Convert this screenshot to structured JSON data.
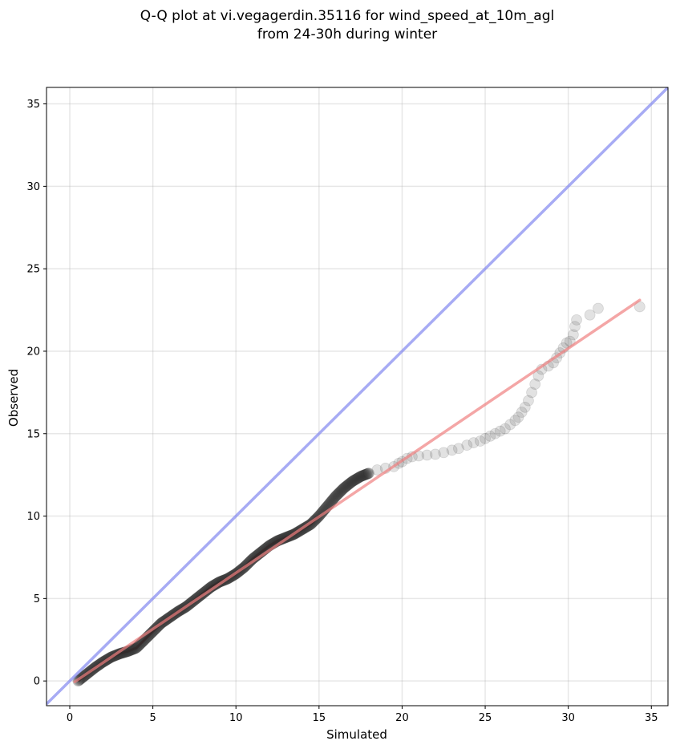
{
  "chart_data": {
    "type": "scatter",
    "title_lines": [
      "Q-Q plot at vi.vegagerdin.35116 for wind_speed_at_10m_agl",
      "from 24-30h during winter"
    ],
    "xlabel": "Simulated",
    "ylabel": "Observed",
    "xlim": [
      -1.4,
      36
    ],
    "ylim": [
      -1.5,
      36
    ],
    "xticks": [
      0,
      5,
      10,
      15,
      20,
      25,
      30,
      35
    ],
    "yticks": [
      0,
      5,
      10,
      15,
      20,
      25,
      30,
      35
    ],
    "grid": true,
    "colors": {
      "points": "#333333",
      "fit_line": "#f08080",
      "identity_line": "#8a8ff0",
      "red_core": "#8b0000"
    },
    "quantile_curve": [
      [
        0.5,
        0.0
      ],
      [
        1.0,
        0.4
      ],
      [
        1.5,
        0.8
      ],
      [
        2.0,
        1.15
      ],
      [
        2.5,
        1.45
      ],
      [
        3.0,
        1.65
      ],
      [
        3.5,
        1.8
      ],
      [
        4.0,
        2.0
      ],
      [
        4.5,
        2.5
      ],
      [
        5.0,
        3.0
      ],
      [
        5.5,
        3.5
      ],
      [
        6.0,
        3.85
      ],
      [
        6.5,
        4.2
      ],
      [
        7.0,
        4.5
      ],
      [
        7.5,
        4.9
      ],
      [
        8.0,
        5.3
      ],
      [
        8.5,
        5.7
      ],
      [
        9.0,
        6.0
      ],
      [
        9.5,
        6.2
      ],
      [
        10.0,
        6.5
      ],
      [
        10.5,
        6.9
      ],
      [
        11.0,
        7.4
      ],
      [
        11.5,
        7.8
      ],
      [
        12.0,
        8.2
      ],
      [
        12.5,
        8.5
      ],
      [
        13.0,
        8.7
      ],
      [
        13.5,
        8.9
      ],
      [
        14.0,
        9.2
      ],
      [
        14.5,
        9.5
      ],
      [
        15.0,
        10.0
      ],
      [
        15.5,
        10.6
      ],
      [
        16.0,
        11.2
      ],
      [
        16.5,
        11.7
      ],
      [
        17.0,
        12.1
      ],
      [
        17.5,
        12.4
      ],
      [
        18.0,
        12.6
      ]
    ],
    "sparse_points": [
      [
        18.5,
        12.8
      ],
      [
        19.0,
        12.9
      ],
      [
        19.5,
        13.0
      ],
      [
        19.8,
        13.2
      ],
      [
        20.0,
        13.3
      ],
      [
        20.3,
        13.5
      ],
      [
        20.6,
        13.6
      ],
      [
        21.0,
        13.65
      ],
      [
        21.5,
        13.7
      ],
      [
        22.0,
        13.75
      ],
      [
        22.5,
        13.85
      ],
      [
        23.0,
        14.0
      ],
      [
        23.4,
        14.1
      ],
      [
        23.9,
        14.3
      ],
      [
        24.3,
        14.45
      ],
      [
        24.7,
        14.55
      ],
      [
        25.0,
        14.7
      ],
      [
        25.3,
        14.85
      ],
      [
        25.6,
        15.0
      ],
      [
        25.9,
        15.15
      ],
      [
        26.2,
        15.3
      ],
      [
        26.5,
        15.55
      ],
      [
        26.8,
        15.8
      ],
      [
        27.0,
        16.0
      ],
      [
        27.2,
        16.3
      ],
      [
        27.4,
        16.6
      ],
      [
        27.6,
        17.0
      ],
      [
        27.8,
        17.5
      ],
      [
        28.0,
        18.0
      ],
      [
        28.2,
        18.5
      ],
      [
        28.4,
        18.9
      ],
      [
        28.8,
        19.1
      ],
      [
        29.1,
        19.3
      ],
      [
        29.3,
        19.6
      ],
      [
        29.5,
        19.9
      ],
      [
        29.7,
        20.2
      ],
      [
        29.9,
        20.5
      ],
      [
        30.1,
        20.6
      ],
      [
        30.3,
        21.0
      ],
      [
        30.4,
        21.5
      ],
      [
        30.5,
        21.9
      ],
      [
        31.3,
        22.2
      ],
      [
        31.8,
        22.6
      ],
      [
        34.3,
        22.7
      ]
    ],
    "fit_line": [
      [
        0.3,
        -0.05
      ],
      [
        34.3,
        23.1
      ]
    ],
    "identity_line": [
      [
        -1.4,
        -1.4
      ],
      [
        36,
        36
      ]
    ]
  }
}
